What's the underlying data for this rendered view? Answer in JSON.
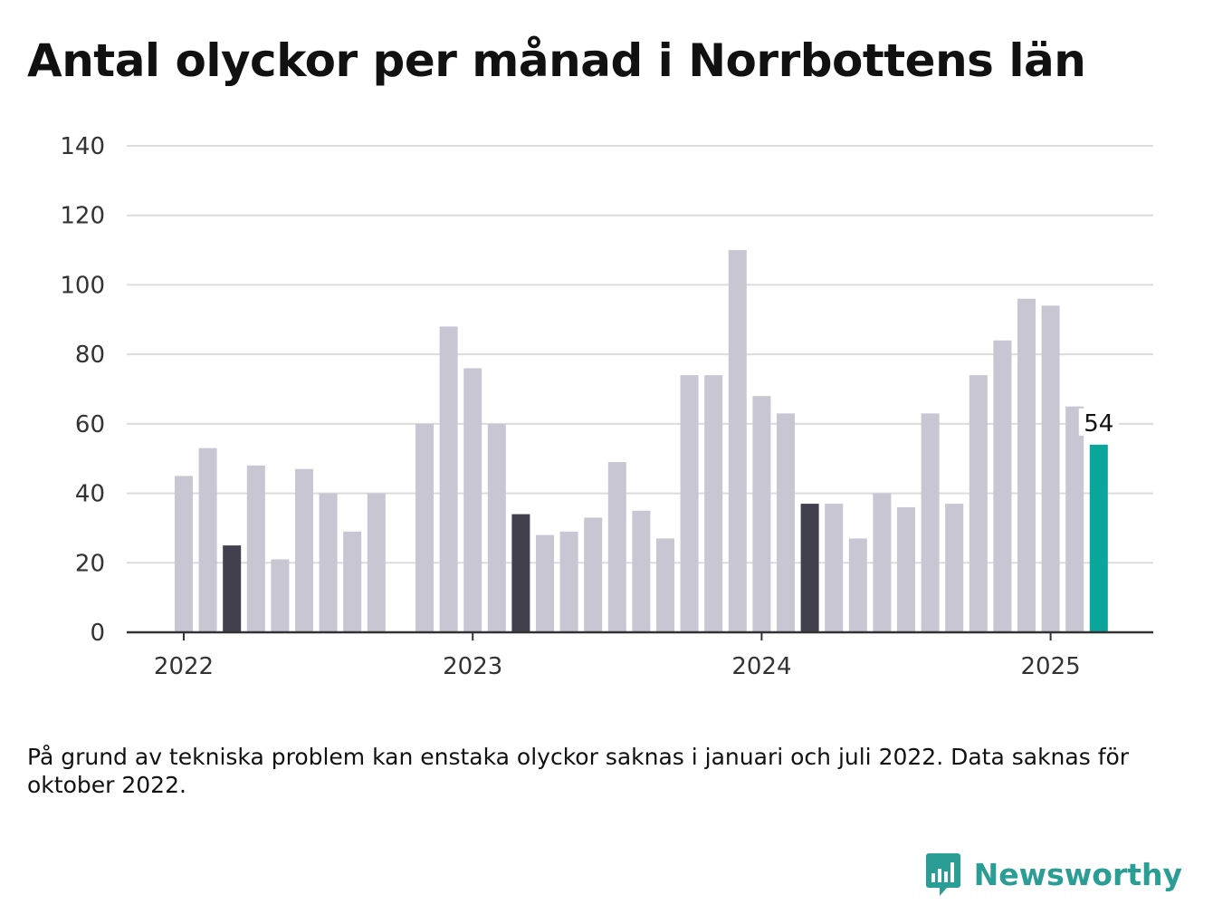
{
  "title": "Antal olyckor per månad i Norrbottens län",
  "note": "På grund av tekniska problem kan enstaka olyckor saknas i januari och juli 2022. Data saknas för oktober 2022.",
  "brand": {
    "name": "Newsworthy",
    "icon": "newsworthy-logo-icon"
  },
  "colors": {
    "default": "#c8c6d2",
    "march": "#41404f",
    "highlight": "#0aa59b",
    "grid": "#dcdcdc",
    "axis": "#333333",
    "brand": "#2a9d95"
  },
  "chart_data": {
    "type": "bar",
    "title": "Antal olyckor per månad i Norrbottens län",
    "xlabel": "",
    "ylabel": "",
    "ylim": [
      0,
      140
    ],
    "yticks": [
      0,
      20,
      40,
      60,
      80,
      100,
      120,
      140
    ],
    "xticks": [
      "2022",
      "2023",
      "2024",
      "2025"
    ],
    "grid": true,
    "categories": [
      "2022-01",
      "2022-02",
      "2022-03",
      "2022-04",
      "2022-05",
      "2022-06",
      "2022-07",
      "2022-08",
      "2022-09",
      "2022-10",
      "2022-11",
      "2022-12",
      "2023-01",
      "2023-02",
      "2023-03",
      "2023-04",
      "2023-05",
      "2023-06",
      "2023-07",
      "2023-08",
      "2023-09",
      "2023-10",
      "2023-11",
      "2023-12",
      "2024-01",
      "2024-02",
      "2024-03",
      "2024-04",
      "2024-05",
      "2024-06",
      "2024-07",
      "2024-08",
      "2024-09",
      "2024-10",
      "2024-11",
      "2024-12",
      "2025-01",
      "2025-02",
      "2025-03"
    ],
    "values": [
      45,
      53,
      25,
      48,
      21,
      47,
      40,
      29,
      40,
      null,
      60,
      88,
      76,
      60,
      34,
      28,
      29,
      33,
      49,
      35,
      27,
      74,
      74,
      110,
      68,
      63,
      37,
      37,
      27,
      40,
      36,
      63,
      37,
      74,
      84,
      96,
      94,
      65,
      54
    ],
    "highlighted_category": "2025-03",
    "data_labels": [
      {
        "category": "2025-03",
        "text": "54"
      }
    ]
  }
}
